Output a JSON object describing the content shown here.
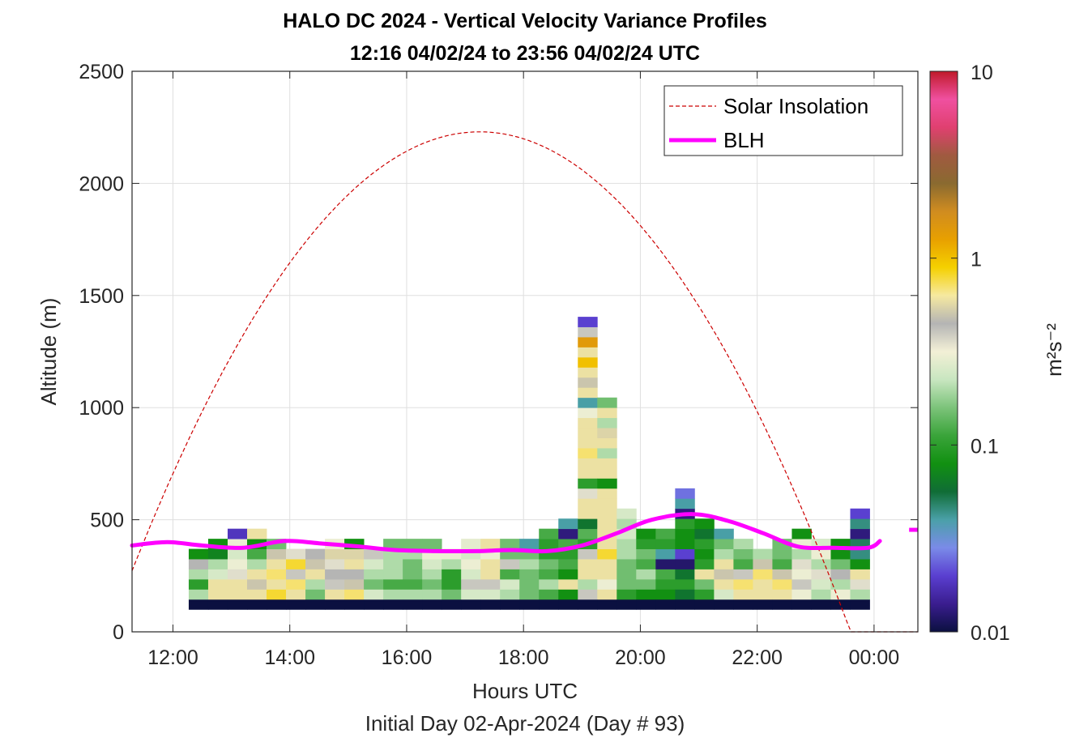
{
  "chart_data": {
    "type": "heatmap",
    "title": "HALO DC 2024 - Vertical Velocity Variance Profiles",
    "subtitle": "12:16 04/02/24 to 23:56 04/02/24  UTC",
    "xlabel": "Hours UTC",
    "xlabel2": "Initial Day 02-Apr-2024 (Day # 93)",
    "ylabel": "Altitude (m)",
    "xlim": [
      11.3,
      24.75
    ],
    "ylim": [
      0,
      2500
    ],
    "grid": true,
    "x_ticks": [
      12,
      14,
      16,
      18,
      20,
      22,
      24
    ],
    "x_tick_labels": [
      "12:00",
      "14:00",
      "16:00",
      "18:00",
      "20:00",
      "22:00",
      "00:00"
    ],
    "y_ticks": [
      0,
      500,
      1000,
      1500,
      2000,
      2500
    ],
    "y_tick_labels": [
      "0",
      "500",
      "1000",
      "1500",
      "2000",
      "2500"
    ],
    "colorbar": {
      "label": "m²s⁻²",
      "scale": "log",
      "range": [
        0.01,
        10
      ],
      "ticks": [
        0.01,
        0.1,
        1,
        10
      ],
      "tick_labels": [
        "0.01",
        "0.1",
        "1",
        "10"
      ],
      "colormap": [
        "#0b1040",
        "#3a1d8f",
        "#5a3fd0",
        "#7a8be8",
        "#4aa0a8",
        "#106d36",
        "#119011",
        "#3aa43a",
        "#7cc37a",
        "#c8e6c0",
        "#f3f0d6",
        "#b4b4b4",
        "#f6e9a0",
        "#f5d000",
        "#e8a000",
        "#d08c20",
        "#8a6a30",
        "#a05a40",
        "#e04070",
        "#f050a0",
        "#c01a2a"
      ]
    },
    "time_start": 12.27,
    "time_step": 0.333,
    "alt_start": 100,
    "alt_step": 45,
    "variance_m2s2": [
      [
        0.01,
        0.2,
        0.1,
        0.2,
        0.45,
        0.08
      ],
      [
        0.01,
        0.6,
        0.6,
        0.25,
        0.2,
        0.07,
        0.08
      ],
      [
        0.01,
        0.6,
        0.6,
        0.35,
        0.3,
        0.25,
        0.3,
        0.018
      ],
      [
        0.01,
        0.6,
        0.5,
        0.6,
        0.2,
        0.12,
        0.08,
        0.6
      ],
      [
        0.01,
        0.8,
        0.6,
        0.7,
        0.6,
        0.5,
        0.15
      ],
      [
        0.01,
        0.6,
        0.7,
        0.4,
        0.8,
        0.35
      ],
      [
        0.01,
        0.15,
        0.2,
        0.6,
        0.5,
        0.45
      ],
      [
        0.01,
        0.6,
        0.4,
        0.45,
        0.35,
        0.55,
        0.3
      ],
      [
        0.01,
        0.7,
        0.5,
        0.45,
        0.6,
        0.55,
        0.08
      ],
      [
        0.01,
        0.25,
        0.15,
        0.2,
        0.25,
        0.4
      ],
      [
        0.01,
        0.2,
        0.12,
        0.2,
        0.2,
        0.2,
        0.15
      ],
      [
        0.01,
        0.2,
        0.12,
        0.15,
        0.15,
        0.2,
        0.15
      ],
      [
        0.01,
        0.2,
        0.15,
        0.2,
        0.25,
        0.3,
        0.15
      ],
      [
        0.01,
        0.15,
        0.1,
        0.1,
        0.2,
        0.3
      ],
      [
        0.01,
        0.25,
        0.4,
        0.25,
        0.3,
        0.25,
        0.28
      ],
      [
        0.01,
        0.25,
        0.4,
        0.6,
        0.6,
        0.3,
        0.6
      ],
      [
        0.01,
        0.2,
        0.25,
        0.12,
        0.4,
        0.15,
        0.15
      ],
      [
        0.01,
        0.15,
        0.15,
        0.15,
        0.2,
        0.15,
        0.04
      ],
      [
        0.01,
        0.12,
        0.2,
        0.12,
        0.15,
        0.1,
        0.1,
        0.12
      ],
      [
        0.01,
        0.08,
        0.6,
        0.08,
        0.12,
        0.1,
        0.12,
        0.013,
        0.04
      ],
      [
        0.01,
        0.4,
        0.2,
        0.6,
        0.6,
        0.4,
        0.1,
        0.13,
        0.06,
        0.6,
        0.6,
        0.35,
        0.1,
        0.6,
        0.6,
        0.7,
        0.6,
        0.6,
        0.6,
        0.3,
        0.04,
        0.6,
        0.5,
        0.6,
        1.0,
        0.6,
        1.4,
        0.4,
        0.02
      ],
      [
        0.01,
        0.6,
        0.3,
        0.6,
        0.6,
        0.8,
        0.6,
        0.6,
        0.6,
        0.6,
        0.6,
        0.6,
        0.08,
        0.6,
        0.6,
        0.2,
        0.6,
        0.55,
        0.2,
        0.6,
        0.15
      ],
      [
        0.01,
        0.1,
        0.15,
        0.15,
        0.15,
        0.2,
        0.2,
        0.25,
        0.2,
        0.25
      ],
      [
        0.01,
        0.08,
        0.15,
        0.2,
        0.12,
        0.15,
        0.1,
        0.08
      ],
      [
        0.01,
        0.08,
        0.1,
        0.12,
        0.012,
        0.04,
        0.1,
        0.12
      ],
      [
        0.01,
        0.06,
        0.1,
        0.06,
        0.012,
        0.02,
        0.08,
        0.08,
        0.1,
        0.013,
        0.04,
        0.025
      ],
      [
        0.01,
        0.1,
        0.15,
        0.6,
        0.1,
        0.08,
        0.1,
        0.06,
        0.08
      ],
      [
        0.01,
        0.25,
        0.6,
        0.5,
        0.6,
        0.2,
        0.15,
        0.04
      ],
      [
        0.01,
        0.6,
        0.7,
        0.4,
        0.12,
        0.15,
        0.2
      ],
      [
        0.01,
        0.6,
        0.6,
        0.7,
        0.5,
        0.2
      ],
      [
        0.01,
        0.6,
        0.7,
        0.5,
        0.12,
        0.15,
        0.15
      ],
      [
        0.01,
        0.3,
        0.4,
        0.3,
        0.35,
        0.2,
        0.3,
        0.08
      ],
      [
        0.01,
        0.2,
        0.25,
        0.35,
        0.2,
        0.3,
        0.25
      ],
      [
        0.01,
        0.3,
        0.2,
        0.45,
        0.15,
        0.08,
        0.08
      ],
      [
        0.01,
        0.2,
        0.35,
        0.6,
        0.08,
        0.045,
        0.05,
        0.013,
        0.045,
        0.02
      ]
    ],
    "blh_m": {
      "hours": [
        11.3,
        11.9,
        12.5,
        13.2,
        13.9,
        14.5,
        15.2,
        15.8,
        16.5,
        17.2,
        17.8,
        18.4,
        19.0,
        19.6,
        20.2,
        20.9,
        21.5,
        22.1,
        22.7,
        23.3,
        23.9,
        24.1
      ],
      "values": [
        385,
        400,
        385,
        375,
        405,
        395,
        380,
        365,
        360,
        360,
        365,
        360,
        385,
        440,
        500,
        525,
        495,
        440,
        380,
        375,
        375,
        405
      ],
      "segment_hours": [
        24.6,
        24.75
      ],
      "segment_value": 455
    },
    "solar": {
      "peak_hour": 17.25,
      "peak_alt": 2230,
      "sunrise": 10.9,
      "sunset": 23.6,
      "zero_until": 24.75
    },
    "legend": {
      "position": "top-right",
      "entries": [
        "Solar Insolation",
        "BLH"
      ]
    },
    "colors": {
      "blh": "#ff00ff",
      "solar": "#cc0000",
      "grid": "#dfdfdf"
    }
  }
}
